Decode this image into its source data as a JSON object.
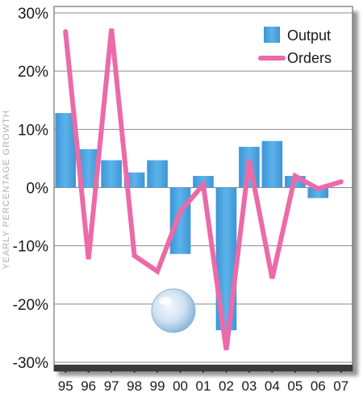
{
  "chart_data": {
    "type": "bar",
    "categories": [
      "95",
      "96",
      "97",
      "98",
      "99",
      "00",
      "01",
      "02",
      "03",
      "04",
      "05",
      "06",
      "07"
    ],
    "series": [
      {
        "name": "Output",
        "type": "bar",
        "color": "#4aa3e0",
        "values": [
          12.8,
          6.6,
          4.7,
          2.6,
          4.7,
          -11.4,
          2.0,
          -24.5,
          7.0,
          8.0,
          2.0,
          -1.8,
          0.0
        ]
      },
      {
        "name": "Orders",
        "type": "line",
        "color": "#ec6aa8",
        "values": [
          26.8,
          -12.3,
          27.3,
          -11.7,
          -14.4,
          -4.1,
          0.5,
          -27.9,
          4.8,
          -15.6,
          2.0,
          -0.2,
          1.0
        ]
      }
    ],
    "ylabel": "YEARLY PERCENTAGE GROWTH",
    "ylim": [
      -30,
      30
    ],
    "yticks": [
      "30%",
      "20%",
      "10%",
      "0%",
      "-10%",
      "-20%",
      "-30%"
    ],
    "ytick_values": [
      30,
      20,
      10,
      0,
      -10,
      -20,
      -30
    ],
    "grid": true,
    "legend_position": "top-right",
    "decoration": "bubble-icon"
  }
}
